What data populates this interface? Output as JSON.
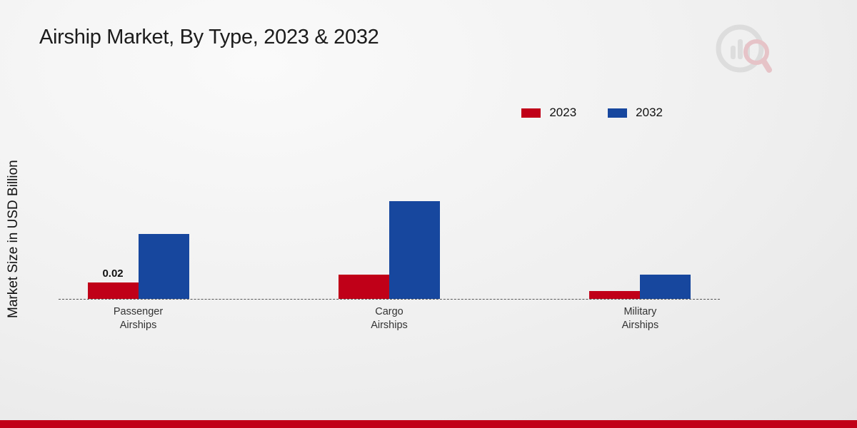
{
  "title": "Airship Market, By Type, 2023 & 2032",
  "ylabel": "Market Size in USD Billion",
  "colors": {
    "series_2023": "#c00018",
    "series_2032": "#17479e",
    "footer_bar": "#c10018",
    "baseline": "#555555"
  },
  "chart_data": {
    "type": "bar",
    "title": "Airship Market, By Type, 2023 & 2032",
    "ylabel": "Market Size in USD Billion",
    "categories": [
      "Passenger Airships",
      "Cargo Airships",
      "Military Airships"
    ],
    "series": [
      {
        "name": "2023",
        "color": "#c00018",
        "values": [
          0.02,
          0.03,
          0.01
        ]
      },
      {
        "name": "2032",
        "color": "#17479e",
        "values": [
          0.08,
          0.12,
          0.03
        ]
      }
    ],
    "annotations": [
      {
        "category_index": 0,
        "series_index": 0,
        "text": "0.02"
      }
    ],
    "ylim": [
      0,
      0.14
    ],
    "grid": false,
    "baseline_style": "dashed",
    "legend_position": "top-right"
  }
}
